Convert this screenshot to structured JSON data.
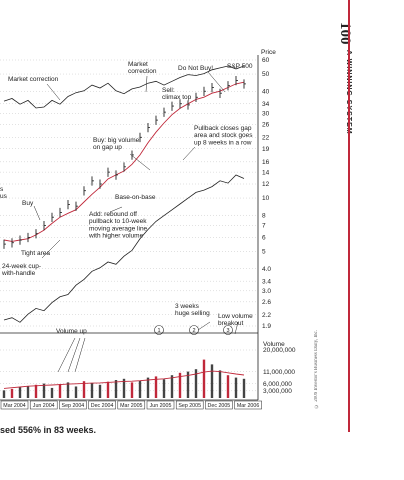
{
  "page_number": "100",
  "chapter_title": "A WINNING SYSTEM",
  "copyright": "© 2009 Investor's Business Daily, Inc.",
  "caption": "sed 556% in 83 weeks.",
  "chart_data": {
    "type": "line",
    "title": "",
    "price_axis_label": "Price",
    "volume_axis_label": "Volume",
    "price_ticks": [
      "60",
      "50",
      "40",
      "34",
      "30",
      "26",
      "22",
      "19",
      "16",
      "14",
      "12",
      "10",
      "8",
      "7",
      "6",
      "5",
      "4.0",
      "3.4",
      "3.0",
      "2.6",
      "2.2",
      "1.9"
    ],
    "volume_ticks": [
      "20,000,000",
      "11,000,000",
      "6,000,000",
      "3,000,000"
    ],
    "date_ticks": [
      "Mar 2004",
      "Jun 2004",
      "Sep 2004",
      "Dec 2004",
      "Mar 2005",
      "Jun 2005",
      "Sep 2005",
      "Dec 2005",
      "Mar 2006"
    ],
    "series": [
      {
        "name": "S&P 500",
        "values": [
          1126,
          1140,
          1110,
          1130,
          1090,
          1095,
          1130,
          1110,
          1150,
          1170,
          1180,
          1210,
          1195,
          1220,
          1180,
          1165,
          1190,
          1200,
          1220,
          1230,
          1210,
          1230,
          1250,
          1265,
          1260,
          1270,
          1290,
          1300,
          1310,
          1295,
          1310
        ]
      },
      {
        "values": [
          5.8,
          5.7,
          5.8,
          5.9,
          6.2,
          6.6,
          7.2,
          7.8,
          8.2,
          8.6,
          9.5,
          10.5,
          11.5,
          12.8,
          13.5,
          14.2,
          15.5,
          17.5,
          20.5,
          23.5,
          26.5,
          29.5,
          32,
          34,
          36,
          37,
          39,
          40,
          42,
          44,
          45
        ]
      },
      {
        "values": [
          5.5,
          5.6,
          5.8,
          6.0,
          6.3,
          7.0,
          7.8,
          8.3,
          9.2,
          9.0,
          11,
          12.5,
          12.0,
          14.0,
          13.5,
          15.0,
          17.5,
          22.0,
          25.0,
          27.5,
          30.5,
          33,
          34,
          33.5,
          37,
          40,
          42,
          39,
          43,
          46,
          44
        ]
      },
      {
        "name": "Volume",
        "values": [
          3.2,
          3.8,
          4.5,
          5.0,
          5.5,
          6.0,
          4.2,
          5.8,
          6.5,
          4.8,
          7.0,
          6.2,
          5.5,
          6.8,
          7.5,
          8.0,
          6.5,
          7.2,
          8.5,
          9.0,
          7.8,
          9.5,
          10.5,
          11.0,
          12.0,
          16.0,
          14.0,
          11.5,
          9.5,
          8.5,
          8.0
        ]
      },
      {
        "name": "Volume average",
        "values": [
          4.0,
          4.3,
          4.6,
          4.9,
          5.1,
          5.3,
          5.4,
          5.6,
          5.8,
          5.9,
          6.1,
          6.2,
          6.3,
          6.5,
          6.7,
          6.9,
          7.0,
          7.2,
          7.5,
          7.8,
          8.0,
          8.4,
          8.9,
          9.4,
          10.0,
          10.8,
          11.2,
          11.0,
          10.5,
          10.0,
          9.6
        ]
      }
    ],
    "annotations": [
      {
        "label": "Market correction"
      },
      {
        "label": "Market\ncorrection"
      },
      {
        "label": "Do Not Buy!"
      },
      {
        "label": "S&P 500"
      },
      {
        "label": "Sell:\nclimax top"
      },
      {
        "label": "Pullback closes gap\narea and stock goes\nup 8 weeks in a row"
      },
      {
        "label": "Buy: big volume\non gap up"
      },
      {
        "label": "Base-on-base"
      },
      {
        "label": "Add: rebound off\npullback to 10-week\nmoving average line\nwith higher volume"
      },
      {
        "label": "Buy"
      },
      {
        "label": "s\nus"
      },
      {
        "label": "Tight area"
      },
      {
        "label": "24-week cup-\nwith-handle"
      },
      {
        "label": "3 weeks\nhuge selling"
      },
      {
        "label": "Low volume\nbreakout"
      },
      {
        "label": "Volume up"
      }
    ],
    "markers": [
      "1",
      "2",
      "3"
    ],
    "grid": true,
    "legend": "none"
  }
}
